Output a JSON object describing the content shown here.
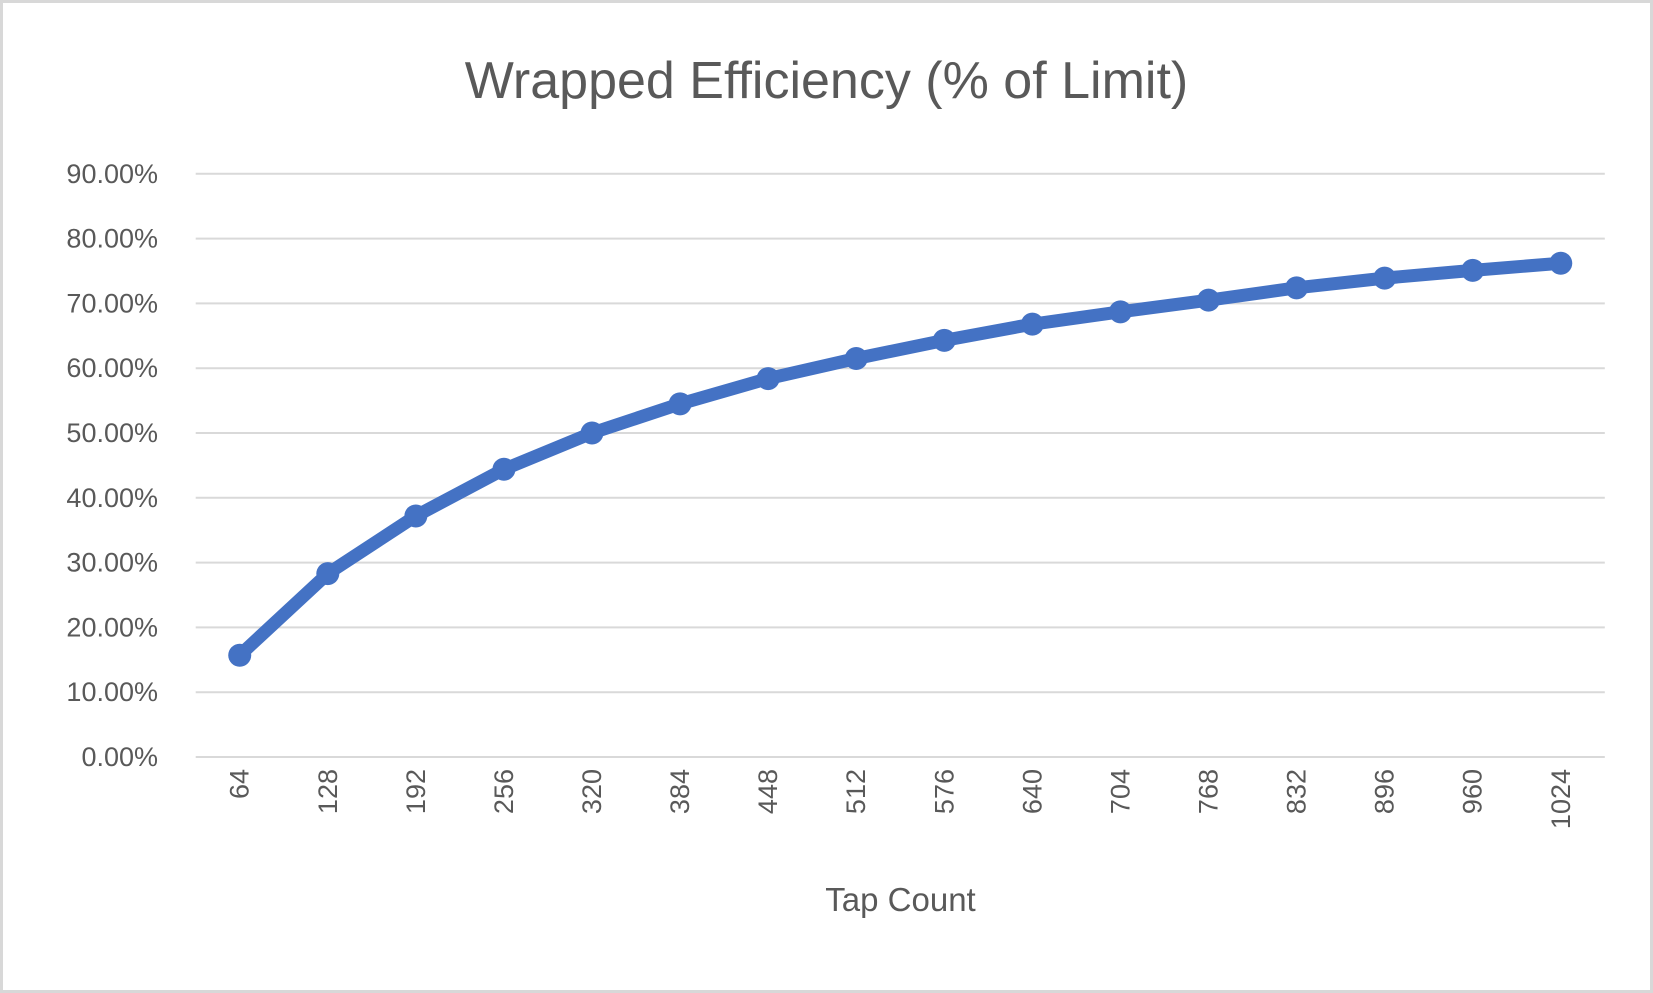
{
  "chart": {
    "title": "Wrapped Efficiency (% of Limit)",
    "x_axis_title": "Tap Count"
  },
  "chart_data": {
    "type": "line",
    "title": "Wrapped Efficiency (% of Limit)",
    "xlabel": "Tap Count",
    "ylabel": "",
    "categories": [
      "64",
      "128",
      "192",
      "256",
      "320",
      "384",
      "448",
      "512",
      "576",
      "640",
      "704",
      "768",
      "832",
      "896",
      "960",
      "1024"
    ],
    "series": [
      {
        "values_percent": [
          15.7,
          28.3,
          37.2,
          44.4,
          50.0,
          54.5,
          58.4,
          61.5,
          64.3,
          66.8,
          68.7,
          70.5,
          72.4,
          73.9,
          75.1,
          76.2
        ]
      }
    ],
    "ylim_percent": [
      0,
      90
    ],
    "y_tick_step_percent": 10,
    "y_tick_labels": [
      "0.00%",
      "10.00%",
      "20.00%",
      "30.00%",
      "40.00%",
      "50.00%",
      "60.00%",
      "70.00%",
      "80.00%",
      "90.00%"
    ],
    "grid": true,
    "legend_position": "none",
    "marker": "circle",
    "colors": {
      "series_line": "#4472C4",
      "marker_fill": "#4472C4",
      "text": "#595959",
      "gridline": "#D9D9D9",
      "axis_line": "#D9D9D9",
      "frame_border": "#D8D8D8",
      "background": "#FFFFFF"
    }
  }
}
